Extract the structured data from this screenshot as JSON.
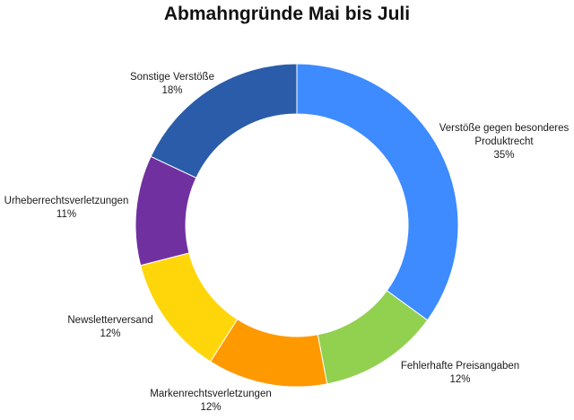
{
  "chart_data": {
    "type": "pie",
    "title": "Abmahngründe Mai bis Juli",
    "slices": [
      {
        "label": "Verstöße gegen besonderes Produktrecht",
        "value": 35,
        "value_label": "35%",
        "color": "#3d8bff"
      },
      {
        "label": "Fehlerhafte Preisangaben",
        "value": 12,
        "value_label": "12%",
        "color": "#92d050"
      },
      {
        "label": "Markenrechtsverletzungen",
        "value": 12,
        "value_label": "12%",
        "color": "#ff9900"
      },
      {
        "label": "Newsletterversand",
        "value": 12,
        "value_label": "12%",
        "color": "#ffd60a"
      },
      {
        "label": "Urheberrechtsverletzungen",
        "value": 11,
        "value_label": "11%",
        "color": "#7030a0"
      },
      {
        "label": "Sonstige Verstöße",
        "value": 18,
        "value_label": "18%",
        "color": "#2a5caa"
      }
    ]
  }
}
